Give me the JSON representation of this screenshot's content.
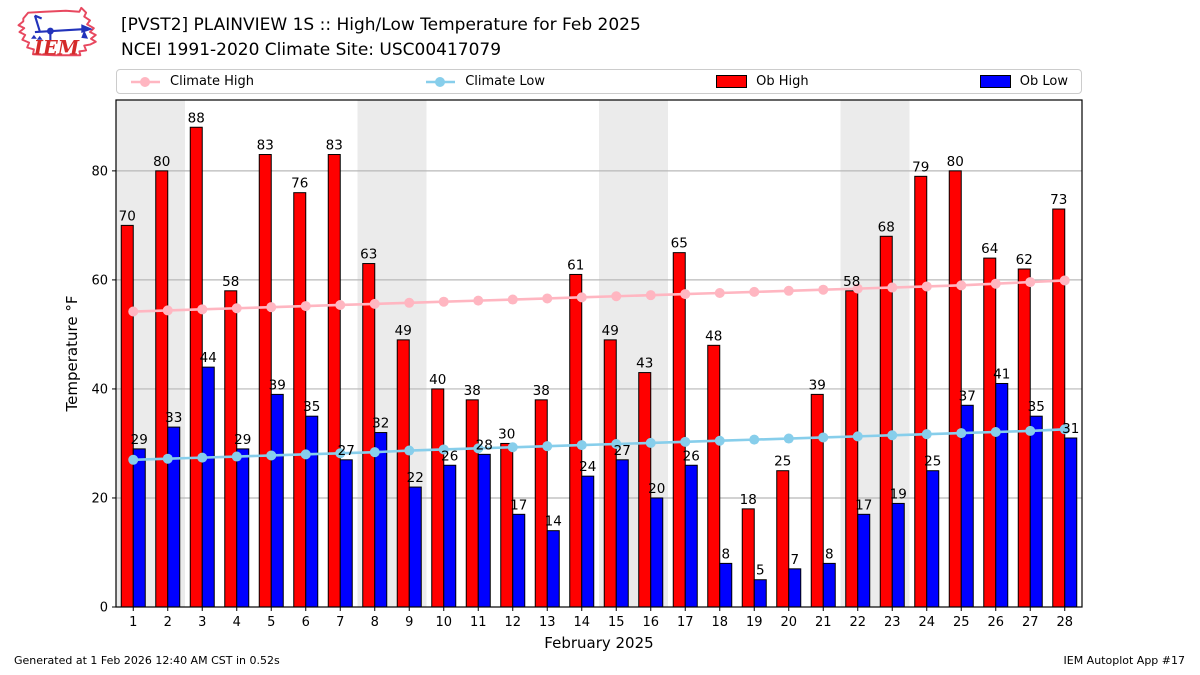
{
  "header": {
    "title_line1": "[PVST2] PLAINVIEW 1S :: High/Low Temperature for Feb 2025",
    "title_line2": "NCEI 1991-2020 Climate Site: USC00417079",
    "logo_text": "IEM"
  },
  "legend": {
    "items": [
      {
        "label": "Climate High",
        "type": "line",
        "color": "#ffb6c1"
      },
      {
        "label": "Climate Low",
        "type": "line",
        "color": "#87ceeb"
      },
      {
        "label": "Ob High",
        "type": "patch",
        "color": "#ff0000"
      },
      {
        "label": "Ob Low",
        "type": "patch",
        "color": "#0000ff"
      }
    ]
  },
  "footer": {
    "left": "Generated at 1 Feb 2026 12:40 AM CST in 0.52s",
    "right": "IEM Autoplot App #17"
  },
  "chart_data": {
    "type": "bar",
    "title": "[PVST2] PLAINVIEW 1S High/Low Temperature for Feb 2025",
    "xlabel": "February 2025",
    "ylabel": "Temperature °F",
    "ylim": [
      0,
      93
    ],
    "yticks": [
      0,
      20,
      40,
      60,
      80
    ],
    "grid": "horizontal",
    "legend_position": "top",
    "categories": [
      "1",
      "2",
      "3",
      "4",
      "5",
      "6",
      "7",
      "8",
      "9",
      "10",
      "11",
      "12",
      "13",
      "14",
      "15",
      "16",
      "17",
      "18",
      "19",
      "20",
      "21",
      "22",
      "23",
      "24",
      "25",
      "26",
      "27",
      "28"
    ],
    "series": [
      {
        "name": "Ob High",
        "type": "bar",
        "color": "#ff0000",
        "values": [
          70,
          80,
          88,
          58,
          83,
          76,
          83,
          63,
          49,
          40,
          38,
          30,
          38,
          61,
          49,
          43,
          65,
          48,
          18,
          25,
          39,
          58,
          68,
          79,
          80,
          64,
          62,
          73
        ]
      },
      {
        "name": "Ob Low",
        "type": "bar",
        "color": "#0000ff",
        "values": [
          29,
          33,
          44,
          29,
          39,
          35,
          27,
          32,
          22,
          26,
          28,
          17,
          14,
          24,
          27,
          20,
          26,
          8,
          5,
          7,
          8,
          17,
          19,
          25,
          37,
          41,
          35,
          31
        ]
      },
      {
        "name": "Climate High",
        "type": "line",
        "color": "#ffb6c1",
        "values": [
          54.2,
          54.4,
          54.6,
          54.8,
          55.0,
          55.2,
          55.4,
          55.6,
          55.8,
          56.0,
          56.2,
          56.4,
          56.6,
          56.8,
          57.0,
          57.2,
          57.4,
          57.6,
          57.8,
          58.0,
          58.2,
          58.4,
          58.6,
          58.8,
          59.0,
          59.3,
          59.6,
          59.9
        ]
      },
      {
        "name": "Climate Low",
        "type": "line",
        "color": "#87ceeb",
        "values": [
          27.0,
          27.2,
          27.4,
          27.6,
          27.8,
          28.0,
          28.2,
          28.4,
          28.7,
          28.9,
          29.1,
          29.3,
          29.5,
          29.7,
          29.9,
          30.1,
          30.3,
          30.5,
          30.7,
          30.9,
          31.1,
          31.3,
          31.5,
          31.7,
          31.9,
          32.1,
          32.3,
          32.6
        ]
      }
    ],
    "weekend_bands": [
      [
        0.5,
        2.5
      ],
      [
        7.5,
        9.5
      ],
      [
        14.5,
        16.5
      ],
      [
        21.5,
        23.5
      ]
    ],
    "colors": {
      "band": "#ebebeb",
      "grid": "#b8b8b8",
      "spine": "#000000",
      "bar_edge": "#000000"
    }
  }
}
